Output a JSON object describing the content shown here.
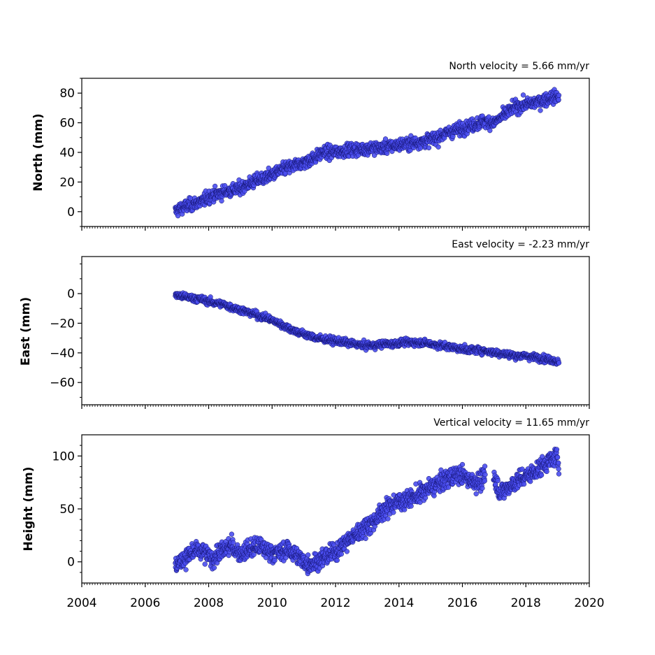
{
  "figure": {
    "background": "#ffffff",
    "marker_color": "#4a4ef0",
    "marker_edge": "#10106a"
  },
  "chart_data": [
    {
      "type": "scatter",
      "title": "North velocity = 5.66 mm/yr",
      "ylabel": "North (mm)",
      "xlim": [
        2004,
        2020
      ],
      "ylim": [
        -10,
        90
      ],
      "yticks": [
        0,
        20,
        40,
        60,
        80
      ],
      "yminor": [
        -10,
        10,
        30,
        50,
        70,
        90
      ],
      "xticks": [],
      "series": [
        {
          "x": [
            2006.95,
            2007.0,
            2007.2,
            2007.5,
            2007.8,
            2008.0,
            2008.3,
            2008.6,
            2008.9,
            2009.2,
            2009.5,
            2009.8,
            2010.1,
            2010.4,
            2010.7,
            2011.0,
            2011.3,
            2011.6,
            2011.9,
            2012.2,
            2012.5,
            2012.8,
            2013.1,
            2013.4,
            2013.7,
            2014.0,
            2014.3,
            2014.6,
            2014.9,
            2015.2,
            2015.5,
            2015.8,
            2016.1,
            2016.4,
            2016.7,
            2017.0,
            2017.3,
            2017.6,
            2017.9,
            2018.2,
            2018.5,
            2018.8,
            2019.05
          ],
          "y": [
            0,
            1,
            3,
            5,
            7,
            10,
            12,
            14,
            15,
            18,
            21,
            23,
            26,
            29,
            31,
            33,
            36,
            40,
            40,
            41,
            42,
            42,
            43,
            43,
            44,
            45,
            46,
            47,
            48,
            50,
            53,
            55,
            57,
            59,
            61,
            60,
            65,
            70,
            72,
            73,
            75,
            77,
            78
          ],
          "noise": 3
        }
      ]
    },
    {
      "type": "scatter",
      "title": "East velocity = -2.23 mm/yr",
      "ylabel": "East (mm)",
      "xlim": [
        2004,
        2020
      ],
      "ylim": [
        -75,
        25
      ],
      "yticks": [
        0,
        -20,
        -40,
        -60
      ],
      "yminor": [
        -70,
        -50,
        -30,
        -10,
        10,
        20
      ],
      "xticks": [],
      "series": [
        {
          "x": [
            2006.95,
            2007.2,
            2007.5,
            2007.8,
            2008.1,
            2008.4,
            2008.7,
            2009.0,
            2009.3,
            2009.6,
            2009.9,
            2010.2,
            2010.5,
            2010.8,
            2011.1,
            2011.4,
            2011.7,
            2012.0,
            2012.3,
            2012.6,
            2012.9,
            2013.2,
            2013.5,
            2013.8,
            2014.1,
            2014.4,
            2014.7,
            2015.0,
            2015.3,
            2015.6,
            2015.9,
            2016.2,
            2016.5,
            2016.8,
            2017.1,
            2017.4,
            2017.7,
            2018.0,
            2018.3,
            2018.6,
            2018.9,
            2019.05
          ],
          "y": [
            -1,
            -2,
            -3,
            -4,
            -6,
            -7,
            -9,
            -11,
            -13,
            -15,
            -17,
            -20,
            -23,
            -26,
            -28,
            -30,
            -31,
            -32,
            -33,
            -34,
            -35,
            -35,
            -34,
            -34,
            -33,
            -33,
            -33,
            -34,
            -35,
            -36,
            -37,
            -38,
            -38,
            -39,
            -40,
            -41,
            -42,
            -42,
            -43,
            -44,
            -45,
            -47
          ],
          "noise": 1.6
        }
      ]
    },
    {
      "type": "scatter",
      "title": "Vertical velocity = 11.65 mm/yr",
      "ylabel": "Height (mm)",
      "xlim": [
        2004,
        2020
      ],
      "ylim": [
        -20,
        120
      ],
      "yticks": [
        0,
        50,
        100
      ],
      "yminor": [
        -10,
        10,
        20,
        30,
        40,
        60,
        70,
        80,
        90,
        110
      ],
      "xticks": [
        2004,
        2006,
        2008,
        2010,
        2012,
        2014,
        2016,
        2018,
        2020
      ],
      "series": [
        {
          "x": [
            2006.95,
            2007.1,
            2007.3,
            2007.6,
            2007.9,
            2008.1,
            2008.4,
            2008.7,
            2009.0,
            2009.3,
            2009.6,
            2009.9,
            2010.2,
            2010.5,
            2010.8,
            2011.1,
            2011.4,
            2011.7,
            2012.0,
            2012.3,
            2012.6,
            2012.9,
            2013.2,
            2013.5,
            2013.8,
            2014.1,
            2014.4,
            2014.7,
            2015.0,
            2015.3,
            2015.6,
            2015.9,
            2016.2,
            2016.5,
            2016.7,
            2017.0,
            2017.2,
            2017.5,
            2017.8,
            2018.1,
            2018.4,
            2018.7,
            2019.0,
            2019.05
          ],
          "y": [
            -3,
            0,
            5,
            10,
            8,
            2,
            10,
            15,
            8,
            12,
            15,
            10,
            8,
            12,
            5,
            -2,
            0,
            5,
            10,
            18,
            25,
            32,
            38,
            48,
            55,
            58,
            60,
            65,
            70,
            75,
            80,
            83,
            78,
            75,
            80,
            80,
            65,
            72,
            78,
            82,
            88,
            95,
            100,
            90
          ],
          "noise": 6
        }
      ]
    }
  ]
}
